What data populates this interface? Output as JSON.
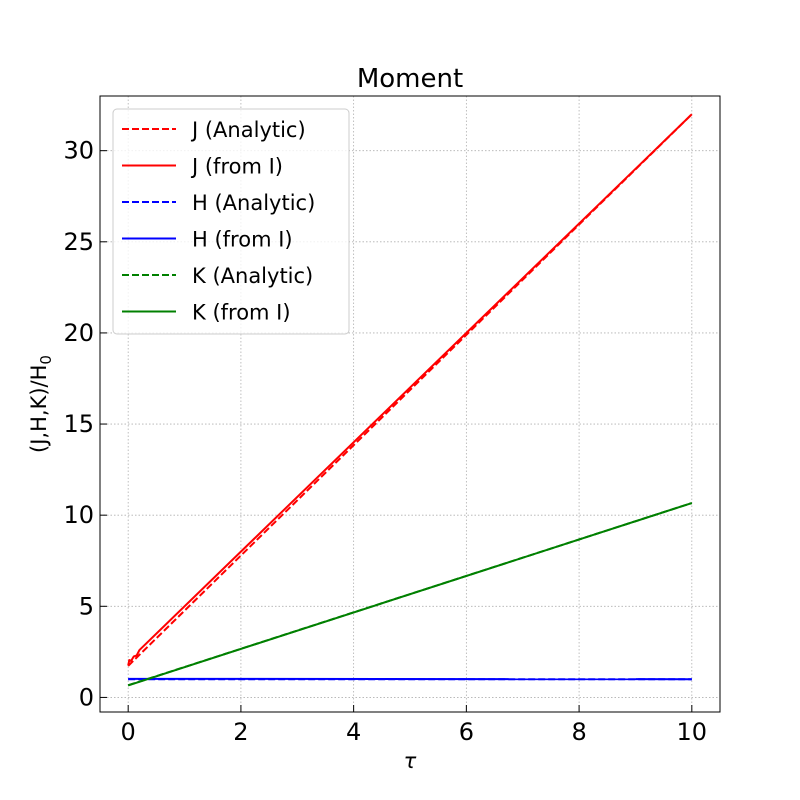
{
  "chart_data": {
    "type": "line",
    "title": "Moment",
    "xlabel": "τ",
    "ylabel": {
      "main": "(J,H,K)/H",
      "subscript": "0"
    },
    "xlim": [
      -0.5,
      10.5
    ],
    "ylim": [
      -0.8,
      33
    ],
    "xticks": [
      0,
      2,
      4,
      6,
      8,
      10
    ],
    "yticks": [
      0,
      5,
      10,
      15,
      20,
      25,
      30
    ],
    "grid": true,
    "legend_position": "top-left",
    "series": [
      {
        "name": "J (Analytic)",
        "color": "#ff0000",
        "dash": "dashed",
        "x": [
          0,
          10
        ],
        "y": [
          1.732,
          32.0
        ]
      },
      {
        "name": "J (from I)",
        "color": "#ff0000",
        "dash": "solid",
        "x": [
          0,
          0.02,
          0.05,
          0.08,
          0.1,
          0.15,
          0.2,
          10
        ],
        "y": [
          1.75,
          2.05,
          2.0,
          2.15,
          2.25,
          2.3,
          2.6,
          32.0
        ]
      },
      {
        "name": "H (Analytic)",
        "color": "#0000ff",
        "dash": "dashed",
        "x": [
          0,
          10
        ],
        "y": [
          1.0,
          1.0
        ]
      },
      {
        "name": "H (from I)",
        "color": "#0000ff",
        "dash": "solid",
        "x": [
          0,
          10
        ],
        "y": [
          1.02,
          1.0
        ]
      },
      {
        "name": "K (Analytic)",
        "color": "#008000",
        "dash": "dashed",
        "x": [
          0,
          10
        ],
        "y": [
          0.667,
          10.667
        ]
      },
      {
        "name": "K (from I)",
        "color": "#008000",
        "dash": "solid",
        "x": [
          0,
          10
        ],
        "y": [
          0.66,
          10.667
        ]
      }
    ]
  }
}
